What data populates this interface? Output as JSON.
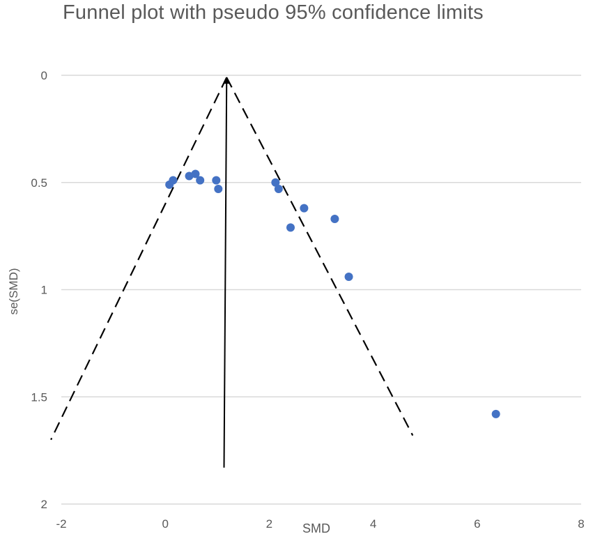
{
  "chart_data": {
    "type": "scatter",
    "title": "Funnel plot with pseudo 95% confidence limits",
    "xlabel": "SMD",
    "ylabel": "se(SMD)",
    "xlim": [
      -2,
      8
    ],
    "ylim": [
      0,
      2
    ],
    "y_inverted": true,
    "x_ticks": [
      -2,
      0,
      2,
      4,
      6,
      8
    ],
    "y_ticks": [
      0,
      0.5,
      1,
      1.5,
      2
    ],
    "x_tick_labels": [
      "-2",
      "0",
      "2",
      "4",
      "6",
      "8"
    ],
    "y_tick_labels": [
      "0",
      "0.5",
      "1",
      "1.5",
      "2"
    ],
    "grid": "horizontal",
    "legend": "none",
    "pooled_estimate": 1.18,
    "pooled_line": {
      "x": [
        1.13,
        1.18
      ],
      "se": [
        1.83,
        0.01
      ]
    },
    "left_limit": {
      "x": [
        1.18,
        -2.2
      ],
      "se": [
        0.01,
        1.7
      ]
    },
    "right_limit": {
      "x": [
        1.18,
        4.76
      ],
      "se": [
        0.01,
        1.68
      ]
    },
    "series": [
      {
        "points": [
          {
            "x": 0.08,
            "y": 0.51
          },
          {
            "x": 0.15,
            "y": 0.49
          },
          {
            "x": 0.46,
            "y": 0.47
          },
          {
            "x": 0.58,
            "y": 0.46
          },
          {
            "x": 0.67,
            "y": 0.49
          },
          {
            "x": 0.98,
            "y": 0.49
          },
          {
            "x": 1.02,
            "y": 0.53
          },
          {
            "x": 2.12,
            "y": 0.5
          },
          {
            "x": 2.18,
            "y": 0.53
          },
          {
            "x": 2.41,
            "y": 0.71
          },
          {
            "x": 2.67,
            "y": 0.62
          },
          {
            "x": 3.26,
            "y": 0.67
          },
          {
            "x": 3.53,
            "y": 0.94
          },
          {
            "x": 6.36,
            "y": 1.58
          }
        ]
      }
    ],
    "colors": {
      "points": "#4472c4",
      "grid": "#d9d9d9",
      "lines": "#000000",
      "text": "#595959"
    }
  }
}
